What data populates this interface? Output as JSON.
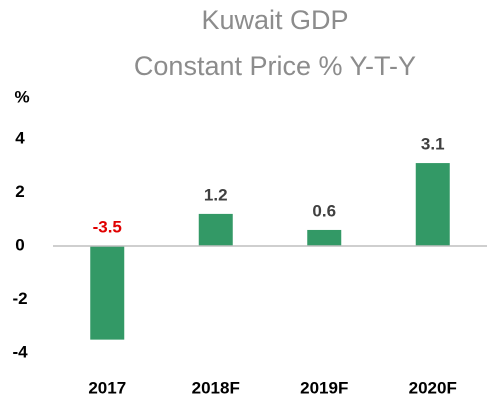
{
  "chart_data": {
    "type": "bar",
    "title": [
      "Kuwait GDP",
      "Constant Price % Y-T-Y"
    ],
    "y_label": "%",
    "categories": [
      "2017",
      "2018F",
      "2019F",
      "2020F"
    ],
    "values": [
      -3.5,
      1.2,
      0.6,
      3.1
    ],
    "color": "#339966",
    "label_color": "#404040",
    "negative_label_color": "#e00000",
    "ylim": [
      -4,
      4
    ],
    "yticks": [
      4,
      2,
      0,
      -2,
      -4
    ],
    "grid": false
  }
}
